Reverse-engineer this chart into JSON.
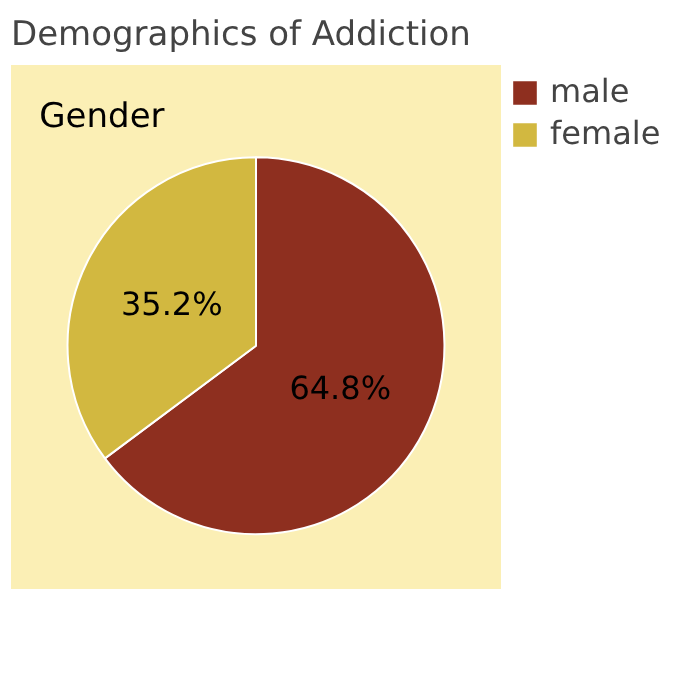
{
  "chart_data": {
    "type": "pie",
    "title": "Demographics of Addiction",
    "subtitle": "Gender",
    "categories": [
      "male",
      "female"
    ],
    "values": [
      64.8,
      35.2
    ],
    "colors": [
      "#8e2f1f",
      "#d2b840"
    ],
    "value_labels": [
      "64.8%",
      "35.2%"
    ],
    "legend": "right"
  }
}
